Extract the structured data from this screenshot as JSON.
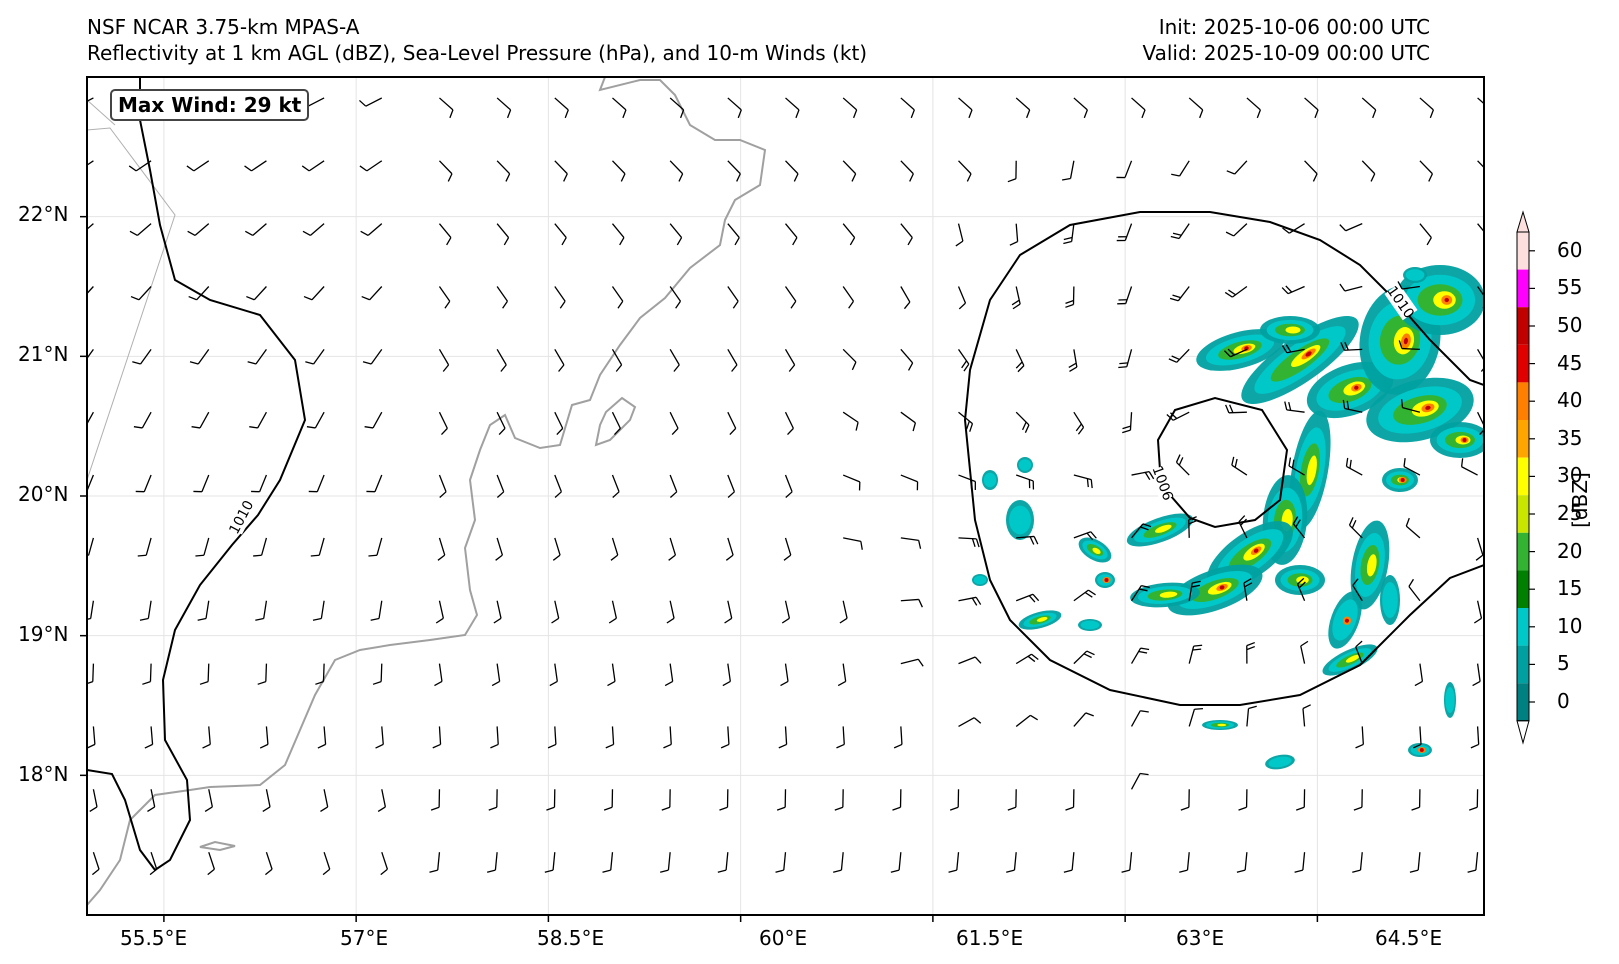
{
  "header": {
    "title_line1": "NSF NCAR 3.75-km MPAS-A",
    "title_line2": "Reflectivity at 1 km AGL (dBZ), Sea-Level Pressure (hPa), and 10-m Winds (kt)",
    "init": "Init: 2025-10-06 00:00 UTC",
    "valid": "Valid: 2025-10-09 00:00 UTC"
  },
  "map": {
    "lon_range": [
      54.9,
      65.8
    ],
    "lat_range": [
      17.0,
      23.0
    ],
    "max_wind_label": "Max Wind: 29 kt",
    "x_ticks": [
      "55.5°E",
      "57°E",
      "58.5°E",
      "60°E",
      "61.5°E",
      "63°E",
      "64.5°E"
    ],
    "y_ticks": [
      "22°N",
      "21°N",
      "20°N",
      "19°N",
      "18°N"
    ],
    "x_tick_values": [
      55.5,
      57,
      58.5,
      60,
      61.5,
      63,
      64.5
    ],
    "y_tick_values": [
      22,
      21,
      20,
      19,
      18
    ],
    "contour_labels": [
      "1010",
      "1010",
      "1006"
    ],
    "storm_center": {
      "lon": 63.2,
      "lat": 20.25
    },
    "coast_color": "#a0a0a0",
    "contour_color": "#000000"
  },
  "colorbar": {
    "title": "[dBZ]",
    "labels": [
      "60",
      "55",
      "50",
      "45",
      "40",
      "35",
      "30",
      "25",
      "20",
      "15",
      "10",
      "5",
      "0"
    ],
    "colors": [
      "#fde0dd",
      "#ff00ff",
      "#c00000",
      "#e00000",
      "#ff8000",
      "#ffa500",
      "#ffff00",
      "#c8e600",
      "#32b432",
      "#008000",
      "#00c8c8",
      "#00a0a0",
      "#008080"
    ]
  }
}
